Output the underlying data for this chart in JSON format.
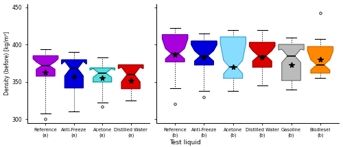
{
  "title": "",
  "ylabel": "Density (before) [kg/m³]",
  "xlabel": "Test liquid",
  "ylim": [
    295,
    455
  ],
  "yticks": [
    300,
    350,
    400,
    450
  ],
  "groups_a": [
    {
      "label": "Reference\n(a)",
      "color": "#AA00DD",
      "edge_color": "#660099",
      "median": 372,
      "q1": 358,
      "q3": 381,
      "whislo": 308,
      "whishi": 394,
      "fliers_low": [
        300
      ],
      "fliers_high": [],
      "mean": 363,
      "notch_lower": 367,
      "notch_upper": 377
    },
    {
      "label": "Anti-Freeze\n(a)",
      "color": "#0000DD",
      "edge_color": "#000088",
      "median": 368,
      "q1": 342,
      "q3": 374,
      "whislo": 310,
      "whishi": 390,
      "fliers_low": [],
      "fliers_high": [],
      "mean": 357,
      "notch_lower": 358,
      "notch_upper": 378
    },
    {
      "label": "Acetone\n(a)",
      "color": "#55DDDD",
      "edge_color": "#008888",
      "median": 362,
      "q1": 350,
      "q3": 366,
      "whislo": 322,
      "whishi": 383,
      "fliers_low": [
        317
      ],
      "fliers_high": [],
      "mean": 355,
      "notch_lower": 356,
      "notch_upper": 368
    },
    {
      "label": "Distilled Water\n(a)",
      "color": "#DD0000",
      "edge_color": "#880000",
      "median": 360,
      "q1": 341,
      "q3": 368,
      "whislo": 325,
      "whishi": 372,
      "fliers_low": [],
      "fliers_high": [],
      "mean": 352,
      "notch_lower": 350,
      "notch_upper": 370
    }
  ],
  "groups_b": [
    {
      "label": "Reference\n(b)",
      "color": "#AA00DD",
      "edge_color": "#660099",
      "median": 388,
      "q1": 377,
      "q3": 408,
      "whislo": 342,
      "whishi": 422,
      "fliers_low": [
        320
      ],
      "fliers_high": [],
      "mean": 387,
      "notch_lower": 381,
      "notch_upper": 395
    },
    {
      "label": "Anti-Freeze\n(b)",
      "color": "#0000DD",
      "edge_color": "#000088",
      "median": 385,
      "q1": 373,
      "q3": 400,
      "whislo": 338,
      "whishi": 415,
      "fliers_low": [
        330
      ],
      "fliers_high": [],
      "mean": 383,
      "notch_lower": 378,
      "notch_upper": 392
    },
    {
      "label": "Acetone\n(b)",
      "color": "#88DDFF",
      "edge_color": "#3399CC",
      "median": 370,
      "q1": 355,
      "q3": 402,
      "whislo": 338,
      "whishi": 420,
      "fliers_low": [],
      "fliers_high": [],
      "mean": 370,
      "notch_lower": 361,
      "notch_upper": 379
    },
    {
      "label": "Distilled Water\n(b)",
      "color": "#DD0000",
      "edge_color": "#880000",
      "median": 385,
      "q1": 370,
      "q3": 398,
      "whislo": 345,
      "whishi": 420,
      "fliers_low": [],
      "fliers_high": [],
      "mean": 383,
      "notch_lower": 378,
      "notch_upper": 392
    },
    {
      "label": "Gasoline\n(b)",
      "color": "#BBBBBB",
      "edge_color": "#666666",
      "median": 385,
      "q1": 352,
      "q3": 393,
      "whislo": 340,
      "whishi": 410,
      "fliers_low": [],
      "fliers_high": [],
      "mean": 373,
      "notch_lower": 376,
      "notch_upper": 394
    },
    {
      "label": "Biodiesel\n(b)",
      "color": "#FF8800",
      "edge_color": "#CC6600",
      "median": 373,
      "q1": 362,
      "q3": 392,
      "whislo": 355,
      "whishi": 408,
      "fliers_low": [],
      "fliers_high": [
        443
      ],
      "mean": 380,
      "notch_lower": 366,
      "notch_upper": 380
    }
  ],
  "background_color": "#FFFFFF"
}
